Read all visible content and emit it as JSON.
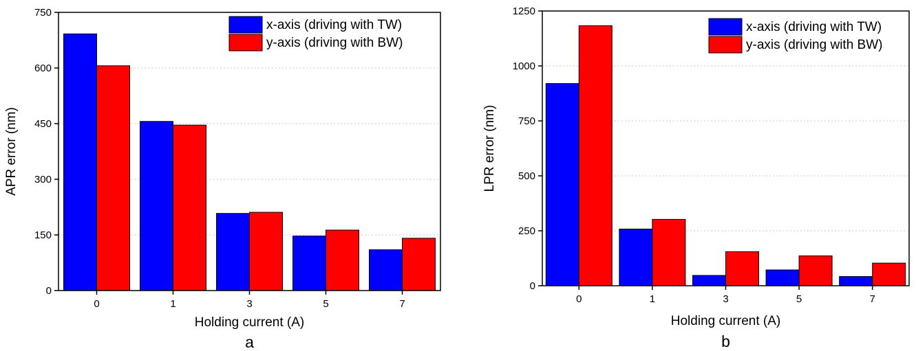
{
  "colors": {
    "x_series": "#0000ff",
    "y_series": "#ff0000",
    "grid": "#c8c8c8",
    "axis": "#000000"
  },
  "chart_data": [
    {
      "type": "bar",
      "panel_label": "a",
      "xlabel": "Holding current (A)",
      "ylabel": "APR error (nm)",
      "categories": [
        "0",
        "1",
        "3",
        "5",
        "7"
      ],
      "ylim": [
        0,
        750
      ],
      "yticks": [
        0,
        150,
        300,
        450,
        600,
        750
      ],
      "grid": "horizontal dotted",
      "legend_position": "top-right",
      "series": [
        {
          "name": "x-axis (driving with TW)",
          "color": "#0000ff",
          "values": [
            692,
            456,
            208,
            147,
            110
          ]
        },
        {
          "name": "y-axis (driving with BW)",
          "color": "#ff0000",
          "values": [
            606,
            446,
            211,
            163,
            141
          ]
        }
      ]
    },
    {
      "type": "bar",
      "panel_label": "b",
      "xlabel": "Holding current (A)",
      "ylabel": "LPR error (nm)",
      "categories": [
        "0",
        "1",
        "3",
        "5",
        "7"
      ],
      "ylim": [
        0,
        1250
      ],
      "yticks": [
        0,
        250,
        500,
        750,
        1000,
        1250
      ],
      "grid": "horizontal dotted",
      "legend_position": "top-right",
      "series": [
        {
          "name": "x-axis (driving with TW)",
          "color": "#0000ff",
          "values": [
            920,
            258,
            47,
            72,
            42
          ]
        },
        {
          "name": "y-axis (driving with BW)",
          "color": "#ff0000",
          "values": [
            1183,
            302,
            155,
            136,
            103
          ]
        }
      ]
    }
  ]
}
